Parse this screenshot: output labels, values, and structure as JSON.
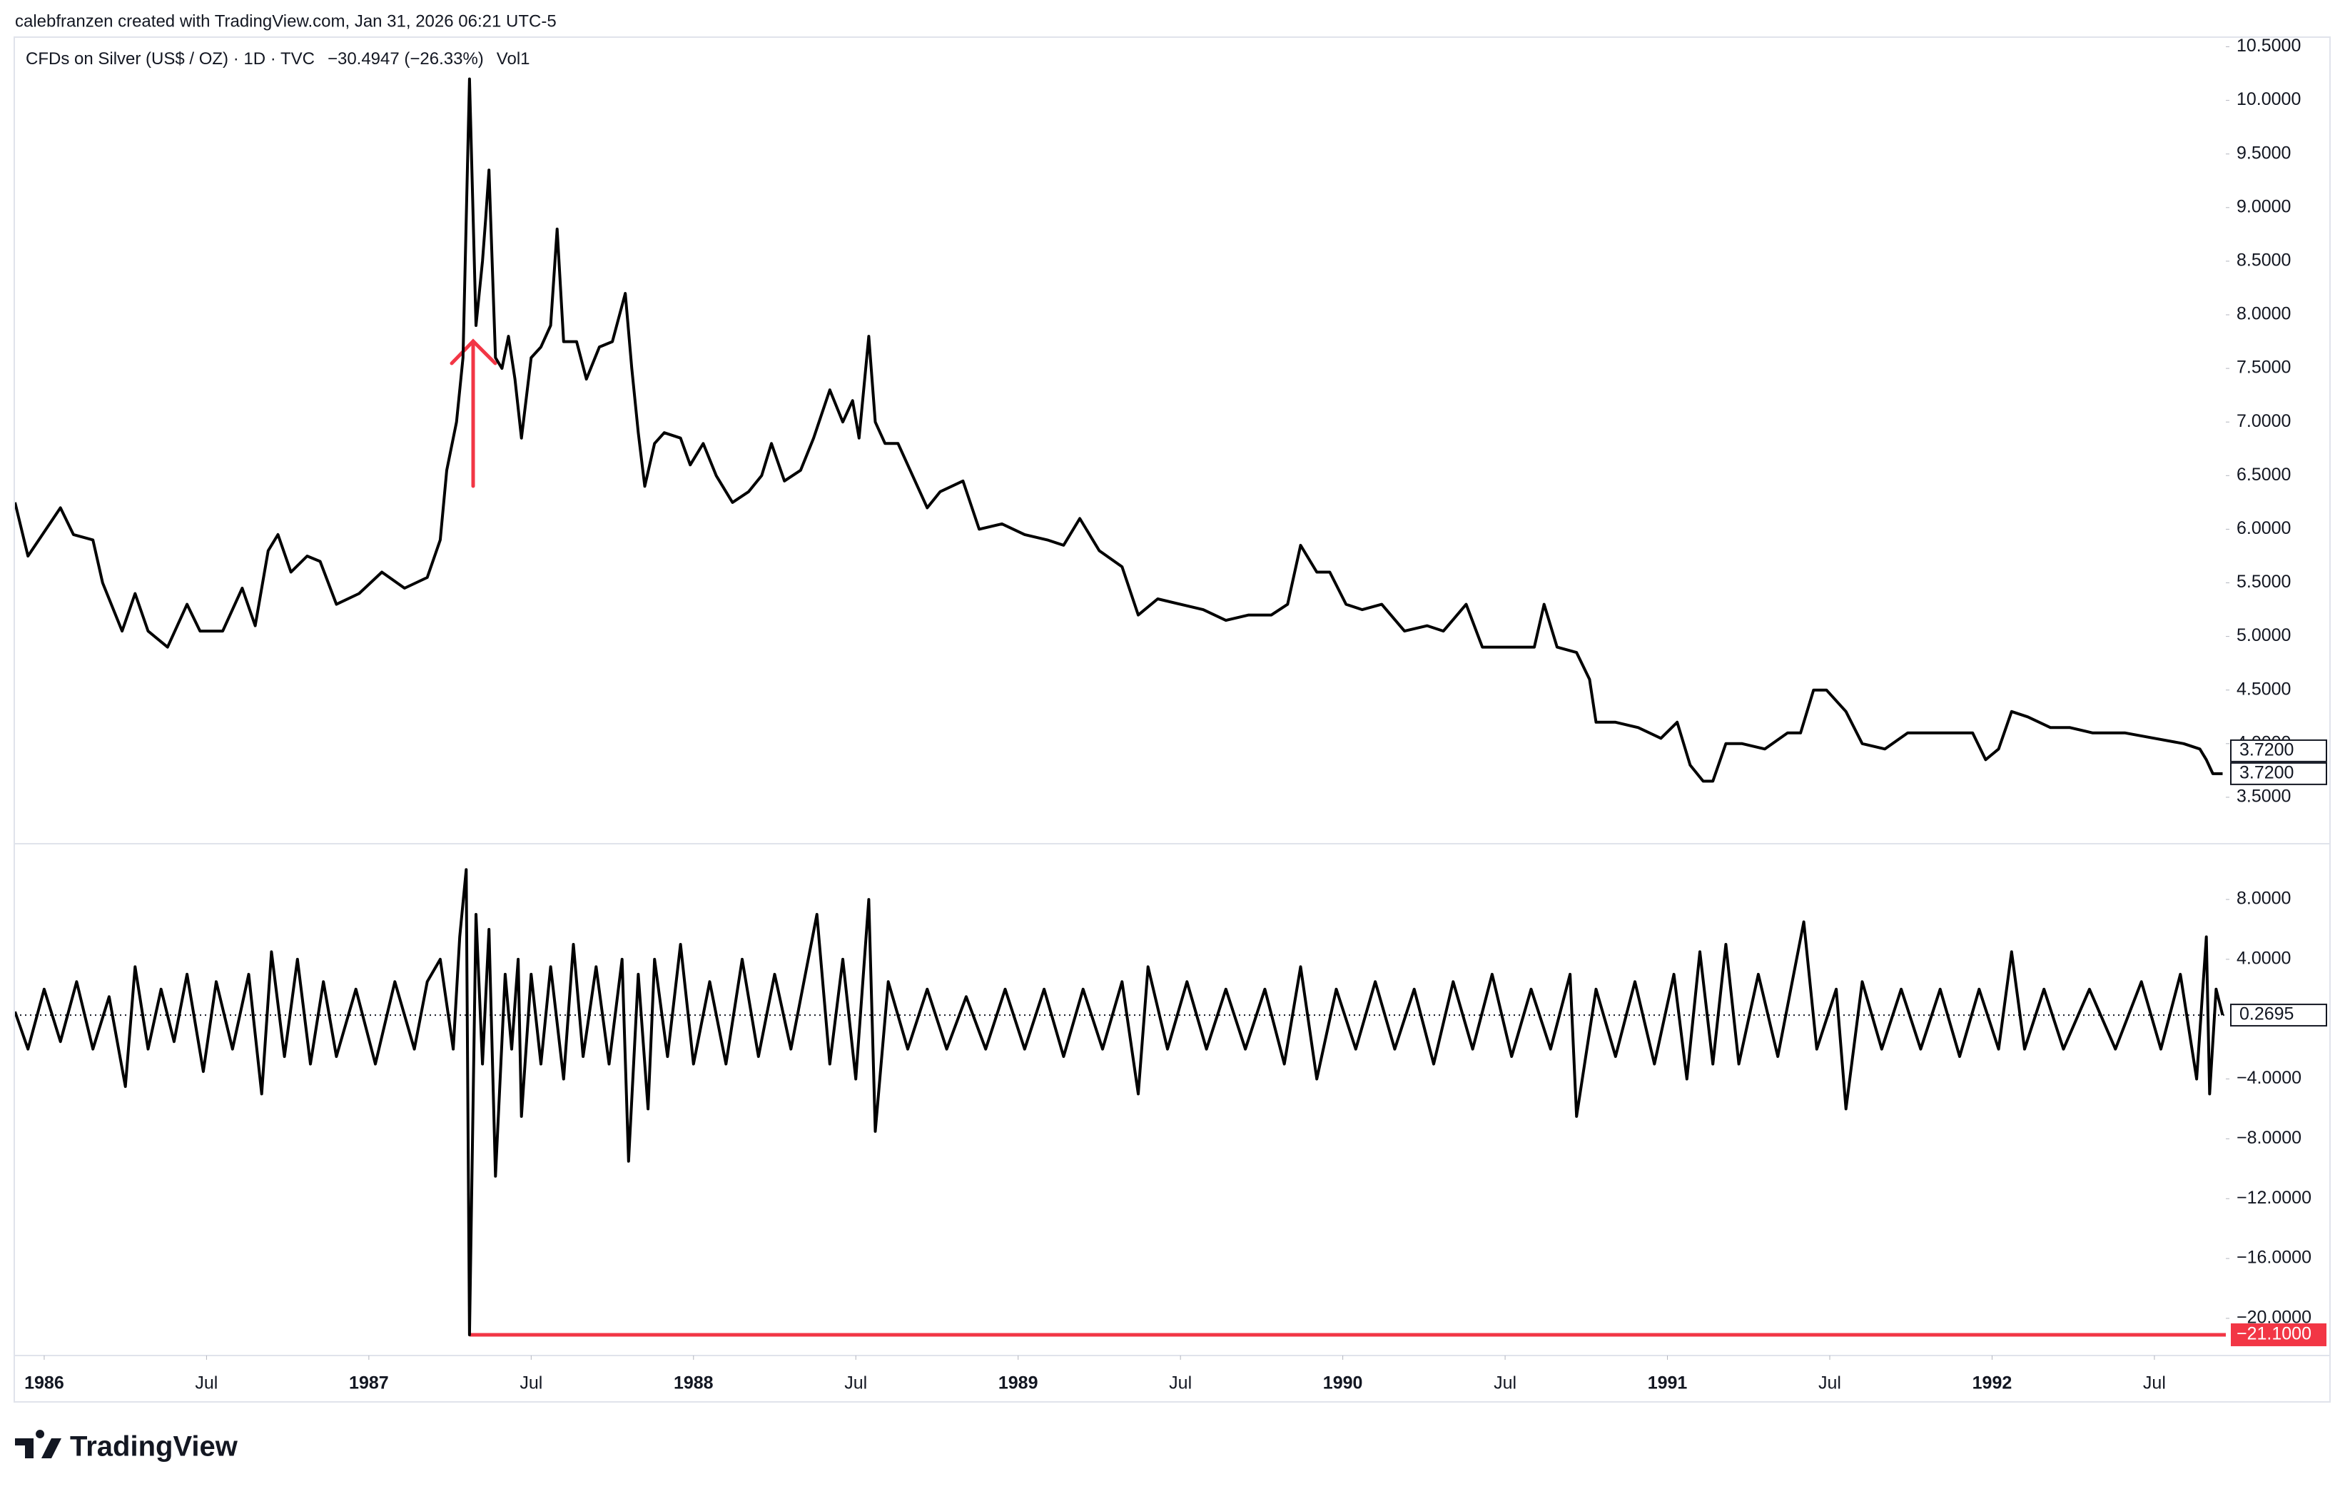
{
  "header": {
    "credit": "calebfranzen created with TradingView.com, Jan 31, 2026 06:21 UTC-5"
  },
  "logo": "TradingView",
  "chart_data": [
    {
      "type": "line",
      "title": "CFDs on Silver (US$ / OZ) · 1D · TVC",
      "change": "−30.4947 (−26.33%)",
      "color": "#000000",
      "grid": false,
      "xlim": [
        1985.91,
        1992.72
      ],
      "ylim": [
        3.08,
        10.59
      ],
      "yticks": [
        {
          "value": 3.5,
          "label": "3.5000"
        },
        {
          "value": 4,
          "label": "4.0000"
        },
        {
          "value": 4.5,
          "label": "4.5000"
        },
        {
          "value": 5,
          "label": "5.0000"
        },
        {
          "value": 5.5,
          "label": "5.5000"
        },
        {
          "value": 6,
          "label": "6.0000"
        },
        {
          "value": 6.5,
          "label": "6.5000"
        },
        {
          "value": 7,
          "label": "7.0000"
        },
        {
          "value": 7.5,
          "label": "7.5000"
        },
        {
          "value": 8,
          "label": "8.0000"
        },
        {
          "value": 8.5,
          "label": "8.5000"
        },
        {
          "value": 9,
          "label": "9.0000"
        },
        {
          "value": 9.5,
          "label": "9.5000"
        },
        {
          "value": 10,
          "label": "10.0000"
        },
        {
          "value": 10.5,
          "label": "10.5000"
        }
      ],
      "x": [
        1985.91,
        1985.95,
        1986.05,
        1986.09,
        1986.15,
        1986.18,
        1986.24,
        1986.28,
        1986.32,
        1986.38,
        1986.44,
        1986.48,
        1986.55,
        1986.61,
        1986.65,
        1986.69,
        1986.72,
        1986.76,
        1986.81,
        1986.85,
        1986.9,
        1986.97,
        1987.04,
        1987.11,
        1987.18,
        1987.22,
        1987.24,
        1987.27,
        1987.29,
        1987.31,
        1987.33,
        1987.35,
        1987.36,
        1987.37,
        1987.39,
        1987.41,
        1987.43,
        1987.45,
        1987.47,
        1987.5,
        1987.53,
        1987.56,
        1987.58,
        1987.6,
        1987.64,
        1987.67,
        1987.71,
        1987.75,
        1987.79,
        1987.81,
        1987.83,
        1987.85,
        1987.88,
        1987.91,
        1987.96,
        1987.99,
        1988.03,
        1988.07,
        1988.12,
        1988.17,
        1988.21,
        1988.24,
        1988.28,
        1988.33,
        1988.37,
        1988.42,
        1988.46,
        1988.49,
        1988.51,
        1988.54,
        1988.56,
        1988.59,
        1988.63,
        1988.66,
        1988.72,
        1988.76,
        1988.83,
        1988.88,
        1988.95,
        1989.02,
        1989.09,
        1989.14,
        1989.19,
        1989.25,
        1989.32,
        1989.37,
        1989.43,
        1989.5,
        1989.57,
        1989.64,
        1989.71,
        1989.78,
        1989.83,
        1989.87,
        1989.92,
        1989.96,
        1990.01,
        1990.06,
        1990.12,
        1990.19,
        1990.26,
        1990.31,
        1990.38,
        1990.43,
        1990.52,
        1990.59,
        1990.62,
        1990.66,
        1990.72,
        1990.76,
        1990.78,
        1990.84,
        1990.91,
        1990.98,
        1991.03,
        1991.07,
        1991.11,
        1991.14,
        1991.18,
        1991.23,
        1991.3,
        1991.37,
        1991.41,
        1991.45,
        1991.49,
        1991.55,
        1991.6,
        1991.67,
        1991.74,
        1991.81,
        1991.88,
        1991.94,
        1991.98,
        1992.02,
        1992.06,
        1992.11,
        1992.18,
        1992.24,
        1992.31,
        1992.41,
        1992.5,
        1992.59,
        1992.64,
        1992.66,
        1992.68,
        1992.71
      ],
      "values": [
        6.25,
        5.75,
        6.2,
        5.95,
        5.9,
        5.5,
        5.05,
        5.4,
        5.05,
        4.9,
        5.3,
        5.05,
        5.05,
        5.45,
        5.1,
        5.8,
        5.95,
        5.6,
        5.75,
        5.7,
        5.3,
        5.4,
        5.6,
        5.45,
        5.55,
        5.9,
        6.55,
        7.0,
        7.6,
        10.2,
        7.9,
        8.5,
        8.9,
        9.35,
        7.6,
        7.5,
        7.8,
        7.4,
        6.85,
        7.6,
        7.7,
        7.9,
        8.8,
        7.75,
        7.75,
        7.4,
        7.7,
        7.75,
        8.2,
        7.5,
        6.9,
        6.4,
        6.8,
        6.9,
        6.85,
        6.6,
        6.8,
        6.5,
        6.25,
        6.35,
        6.5,
        6.8,
        6.45,
        6.55,
        6.85,
        7.3,
        7.0,
        7.2,
        6.85,
        7.8,
        7.0,
        6.8,
        6.8,
        6.6,
        6.2,
        6.35,
        6.45,
        6.0,
        6.05,
        5.95,
        5.9,
        5.85,
        6.1,
        5.8,
        5.65,
        5.2,
        5.35,
        5.3,
        5.25,
        5.15,
        5.2,
        5.2,
        5.3,
        5.85,
        5.6,
        5.6,
        5.3,
        5.25,
        5.3,
        5.05,
        5.1,
        5.05,
        5.3,
        4.9,
        4.9,
        4.9,
        5.3,
        4.9,
        4.85,
        4.6,
        4.2,
        4.2,
        4.15,
        4.05,
        4.2,
        3.8,
        3.65,
        3.65,
        4.0,
        4.0,
        3.95,
        4.1,
        4.1,
        4.5,
        4.5,
        4.3,
        4.0,
        3.95,
        4.1,
        4.1,
        4.1,
        4.1,
        3.85,
        3.95,
        4.3,
        4.25,
        4.15,
        4.15,
        4.1,
        4.1,
        4.05,
        4.0,
        3.95,
        3.85,
        3.72,
        3.72
      ],
      "markers": [
        {
          "value": 3.72,
          "label": "3.7200"
        },
        {
          "value": 3.72,
          "label": "3.7200"
        }
      ]
    },
    {
      "type": "line",
      "title": "Vol1",
      "color": "#000000",
      "grid": false,
      "xlim": [
        1985.91,
        1992.72
      ],
      "ylim": [
        -22.39,
        11.63
      ],
      "yticks": [
        {
          "value": 8,
          "label": "8.0000"
        },
        {
          "value": 4,
          "label": "4.0000"
        },
        {
          "value": -4,
          "label": "−4.0000"
        },
        {
          "value": -8,
          "label": "−8.0000"
        },
        {
          "value": -12,
          "label": "−12.0000"
        },
        {
          "value": -16,
          "label": "−16.0000"
        },
        {
          "value": -20,
          "label": "−20.0000"
        }
      ],
      "xticks": [
        1986,
        {
          "value": 1986.5,
          "label": "Jul"
        },
        1987,
        {
          "value": 1987.5,
          "label": "Jul"
        },
        1988,
        {
          "value": 1988.5,
          "label": "Jul"
        },
        1989,
        {
          "value": 1989.5,
          "label": "Jul"
        },
        1990,
        {
          "value": 1990.5,
          "label": "Jul"
        },
        1991,
        {
          "value": 1991.5,
          "label": "Jul"
        },
        1992,
        {
          "value": 1992.5,
          "label": "Jul"
        }
      ],
      "x": [
        1985.91,
        1985.95,
        1986.0,
        1986.05,
        1986.1,
        1986.15,
        1986.2,
        1986.25,
        1986.28,
        1986.32,
        1986.36,
        1986.4,
        1986.44,
        1986.49,
        1986.53,
        1986.58,
        1986.63,
        1986.67,
        1986.7,
        1986.74,
        1986.78,
        1986.82,
        1986.86,
        1986.9,
        1986.96,
        1987.02,
        1987.08,
        1987.14,
        1987.18,
        1987.22,
        1987.26,
        1987.28,
        1987.3,
        1987.31,
        1987.33,
        1987.35,
        1987.37,
        1987.39,
        1987.42,
        1987.44,
        1987.46,
        1987.47,
        1987.5,
        1987.53,
        1987.56,
        1987.6,
        1987.63,
        1987.66,
        1987.7,
        1987.74,
        1987.78,
        1987.8,
        1987.83,
        1987.86,
        1987.88,
        1987.92,
        1987.96,
        1988.0,
        1988.05,
        1988.1,
        1988.15,
        1988.2,
        1988.25,
        1988.3,
        1988.38,
        1988.42,
        1988.46,
        1988.5,
        1988.54,
        1988.56,
        1988.6,
        1988.66,
        1988.72,
        1988.78,
        1988.84,
        1988.9,
        1988.96,
        1989.02,
        1989.08,
        1989.14,
        1989.2,
        1989.26,
        1989.32,
        1989.37,
        1989.4,
        1989.46,
        1989.52,
        1989.58,
        1989.64,
        1989.7,
        1989.76,
        1989.82,
        1989.87,
        1989.92,
        1989.98,
        1990.04,
        1990.1,
        1990.16,
        1990.22,
        1990.28,
        1990.34,
        1990.4,
        1990.46,
        1990.52,
        1990.58,
        1990.64,
        1990.7,
        1990.72,
        1990.78,
        1990.84,
        1990.9,
        1990.96,
        1991.02,
        1991.06,
        1991.1,
        1991.14,
        1991.18,
        1991.22,
        1991.28,
        1991.34,
        1991.42,
        1991.46,
        1991.52,
        1991.55,
        1991.6,
        1991.66,
        1991.72,
        1991.78,
        1991.84,
        1991.9,
        1991.96,
        1992.02,
        1992.06,
        1992.1,
        1992.16,
        1992.22,
        1992.3,
        1992.38,
        1992.46,
        1992.52,
        1992.58,
        1992.63,
        1992.66,
        1992.67,
        1992.69,
        1992.71
      ],
      "values": [
        0.5,
        -2,
        2,
        -1.5,
        2.5,
        -2,
        1.5,
        -4.5,
        3.5,
        -2,
        2,
        -1.5,
        3,
        -3.5,
        2.5,
        -2,
        3,
        -5,
        4.5,
        -2.5,
        4,
        -3,
        2.5,
        -2.5,
        2,
        -3,
        2.5,
        -2,
        2.5,
        4,
        -2,
        5.5,
        10,
        -21.1,
        7,
        -3,
        6,
        -10.5,
        3,
        -2,
        4,
        -6.5,
        3,
        -3,
        3.5,
        -4,
        5,
        -2.5,
        3.5,
        -3,
        4,
        -9.5,
        3,
        -6,
        4,
        -2.5,
        5,
        -3,
        2.5,
        -3,
        4,
        -2.5,
        3,
        -2,
        7,
        -3,
        4,
        -4,
        8,
        -7.5,
        2.5,
        -2,
        2,
        -2,
        1.5,
        -2,
        2,
        -2,
        2,
        -2.5,
        2,
        -2,
        2.5,
        -5,
        3.5,
        -2,
        2.5,
        -2,
        2,
        -2,
        2,
        -3,
        3.5,
        -4,
        2,
        -2,
        2.5,
        -2,
        2,
        -3,
        2.5,
        -2,
        3,
        -2.5,
        2,
        -2,
        3,
        -6.5,
        2,
        -2.5,
        2.5,
        -3,
        3,
        -4,
        4.5,
        -3,
        5,
        -3,
        3,
        -2.5,
        6.5,
        -2,
        2,
        -6,
        2.5,
        -2,
        2,
        -2,
        2,
        -2.5,
        2,
        -2,
        4.5,
        -2,
        2,
        -2,
        2,
        -2,
        2.5,
        -2,
        3,
        -4,
        5.5,
        -5,
        2,
        0.2695
      ],
      "markers": [
        {
          "value": 0.2695,
          "label": "0.2695"
        }
      ],
      "hline": {
        "value": -21.1,
        "label": "−21.1000",
        "color": "#f23645",
        "x_start": 1987.31
      }
    }
  ]
}
